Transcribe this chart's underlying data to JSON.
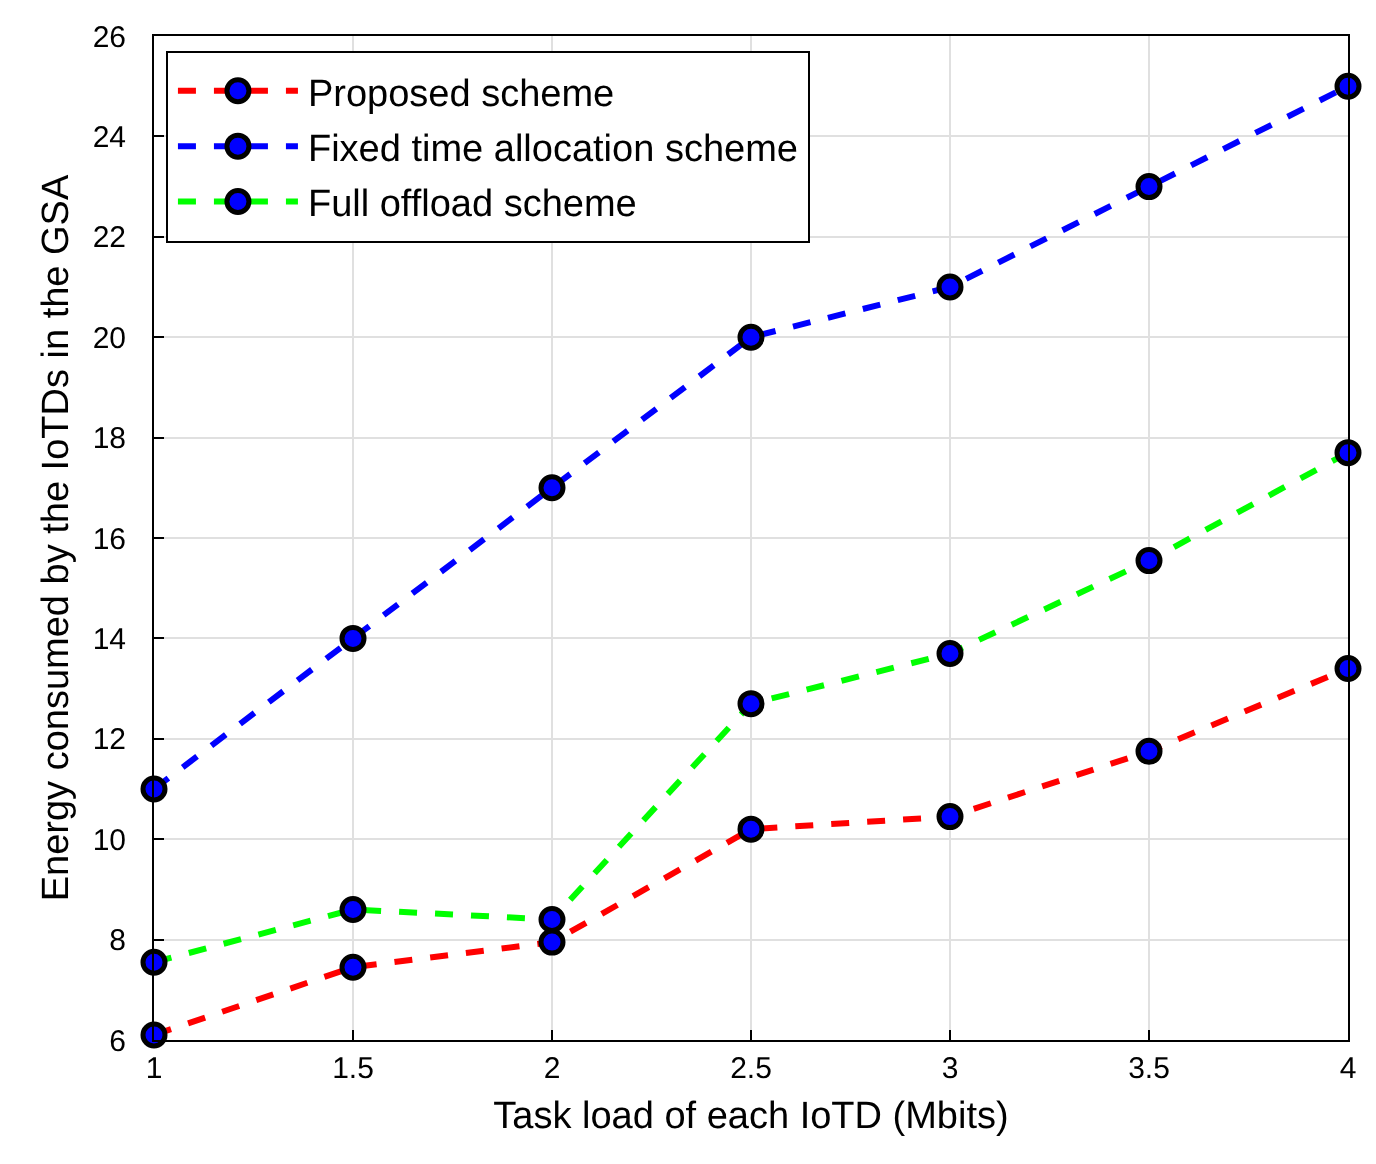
{
  "chart_data": {
    "type": "line",
    "xlabel": "Task load of each IoTD (Mbits)",
    "ylabel": "Energy consumed by the IoTDs in the GSA",
    "x": [
      1,
      1.5,
      2,
      2.5,
      3,
      3.5,
      4
    ],
    "series": [
      {
        "name": "Proposed scheme",
        "color": "#ff0000",
        "values": [
          6.1,
          7.45,
          7.95,
          10.2,
          10.45,
          11.75,
          13.4
        ]
      },
      {
        "name": "Fixed time allocation scheme",
        "color": "#0000ff",
        "values": [
          11,
          14,
          17,
          20,
          21,
          23,
          25
        ]
      },
      {
        "name": "Full offload scheme",
        "color": "#00ff00",
        "values": [
          7.55,
          8.6,
          8.4,
          12.7,
          13.7,
          15.55,
          17.7
        ]
      }
    ],
    "xlim": [
      1,
      4
    ],
    "xticks": [
      1,
      1.5,
      2,
      2.5,
      3,
      3.5,
      4
    ],
    "ylim": [
      6,
      26
    ],
    "yticks": [
      6,
      8,
      10,
      12,
      14,
      16,
      18,
      20,
      22,
      24,
      26
    ],
    "grid": true,
    "legend": "top left",
    "marker": "circle",
    "line_style": "dashed"
  }
}
